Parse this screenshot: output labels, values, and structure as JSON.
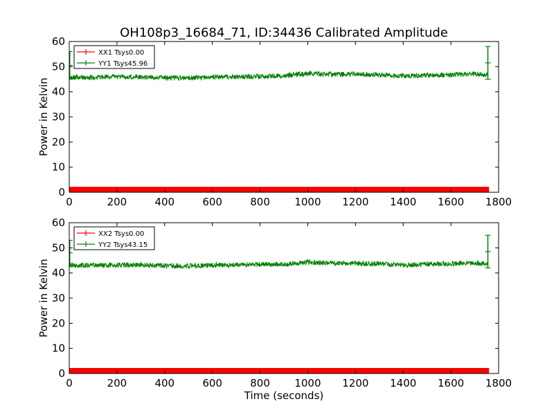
{
  "figure": {
    "title": "OH108p3_16684_71, ID:34436 Calibrated Amplitude"
  },
  "chart_data": [
    {
      "type": "line",
      "title": "OH108p3_16684_71, ID:34436 Calibrated Amplitude",
      "xlabel": "",
      "ylabel": "Power in Kelvin",
      "xlim": [
        0,
        1800
      ],
      "ylim": [
        0,
        60
      ],
      "xticks": [
        "0",
        "200",
        "400",
        "600",
        "800",
        "1000",
        "1200",
        "1400",
        "1600",
        "1800"
      ],
      "yticks": [
        "0",
        "10",
        "20",
        "30",
        "40",
        "50",
        "60"
      ],
      "legend_position": "top-left",
      "grid": false,
      "series": [
        {
          "name": "XX1 Tsys0.00",
          "color": "#ff0000",
          "x": [
            0,
            1760
          ],
          "y": [
            1,
            1
          ],
          "band": [
            0,
            2.2
          ]
        },
        {
          "name": "YY1 Tsys45.96",
          "color": "#008000",
          "x": [
            0,
            100,
            200,
            300,
            400,
            500,
            600,
            700,
            800,
            900,
            960,
            1000,
            1050,
            1100,
            1200,
            1300,
            1400,
            1500,
            1600,
            1700,
            1755
          ],
          "y": [
            45.8,
            45.7,
            46.0,
            45.9,
            45.6,
            45.5,
            45.8,
            46.0,
            46.1,
            46.3,
            47.0,
            47.3,
            47.0,
            46.9,
            46.9,
            46.8,
            46.3,
            46.5,
            46.8,
            47.1,
            46.8
          ],
          "noise": 1.0,
          "spikes": [
            {
              "x": 2,
              "y_min": 45,
              "y_max": 56
            },
            {
              "x": 1755,
              "y_min": 45,
              "y_max": 58
            }
          ]
        }
      ]
    },
    {
      "type": "line",
      "title": "",
      "xlabel": "Time (seconds)",
      "ylabel": "Power in Kelvin",
      "xlim": [
        0,
        1800
      ],
      "ylim": [
        0,
        60
      ],
      "xticks": [
        "0",
        "200",
        "400",
        "600",
        "800",
        "1000",
        "1200",
        "1400",
        "1600",
        "1800"
      ],
      "yticks": [
        "0",
        "10",
        "20",
        "30",
        "40",
        "50",
        "60"
      ],
      "legend_position": "top-left",
      "grid": false,
      "series": [
        {
          "name": "XX2 Tsys0.00",
          "color": "#ff0000",
          "x": [
            0,
            1760
          ],
          "y": [
            1,
            1
          ],
          "band": [
            0,
            2.2
          ]
        },
        {
          "name": "YY2 Tsys43.15",
          "color": "#008000",
          "x": [
            0,
            100,
            200,
            300,
            400,
            500,
            600,
            700,
            800,
            900,
            960,
            1000,
            1050,
            1100,
            1200,
            1300,
            1400,
            1500,
            1600,
            1700,
            1755
          ],
          "y": [
            43.1,
            43.0,
            43.2,
            43.3,
            42.9,
            42.8,
            43.1,
            43.2,
            43.4,
            43.5,
            44.0,
            44.3,
            44.0,
            43.9,
            43.8,
            43.7,
            43.2,
            43.5,
            43.7,
            44.1,
            43.6
          ],
          "noise": 1.0,
          "spikes": [
            {
              "x": 2,
              "y_min": 43,
              "y_max": 53
            },
            {
              "x": 1755,
              "y_min": 42,
              "y_max": 55
            }
          ]
        }
      ]
    }
  ]
}
